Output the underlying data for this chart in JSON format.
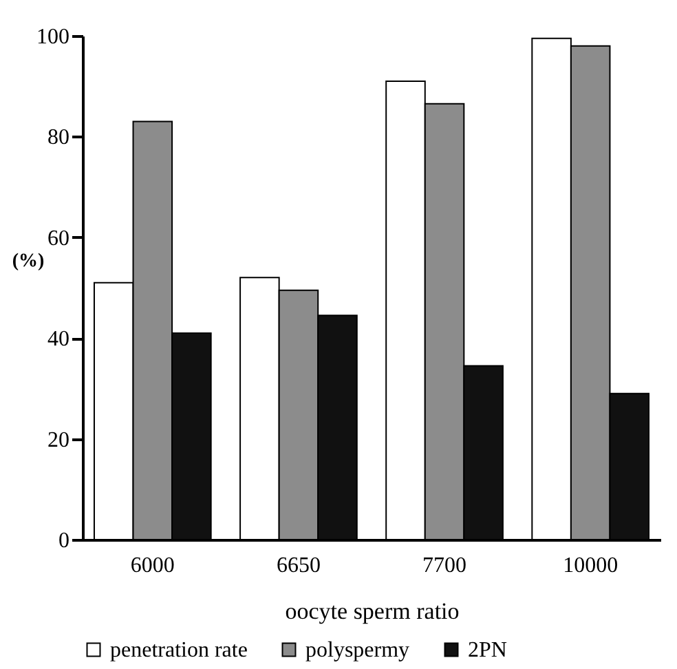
{
  "chart_data": {
    "type": "bar",
    "xlabel": "oocyte sperm ratio",
    "ylabel": "(%)",
    "categories": [
      "6000",
      "6650",
      "7700",
      "10000"
    ],
    "series": [
      {
        "name": "penetration rate",
        "color": "#ffffff",
        "values": [
          51,
          52,
          91,
          99.5
        ]
      },
      {
        "name": "polyspermy",
        "color": "#8c8c8c",
        "values": [
          83,
          49.5,
          86.5,
          98
        ]
      },
      {
        "name": "2PN",
        "color": "#111111",
        "values": [
          41,
          44.5,
          34.5,
          29
        ]
      }
    ],
    "ylim": [
      0,
      100
    ],
    "yticks": [
      0,
      20,
      40,
      60,
      80,
      100
    ],
    "legend": "bottom"
  }
}
